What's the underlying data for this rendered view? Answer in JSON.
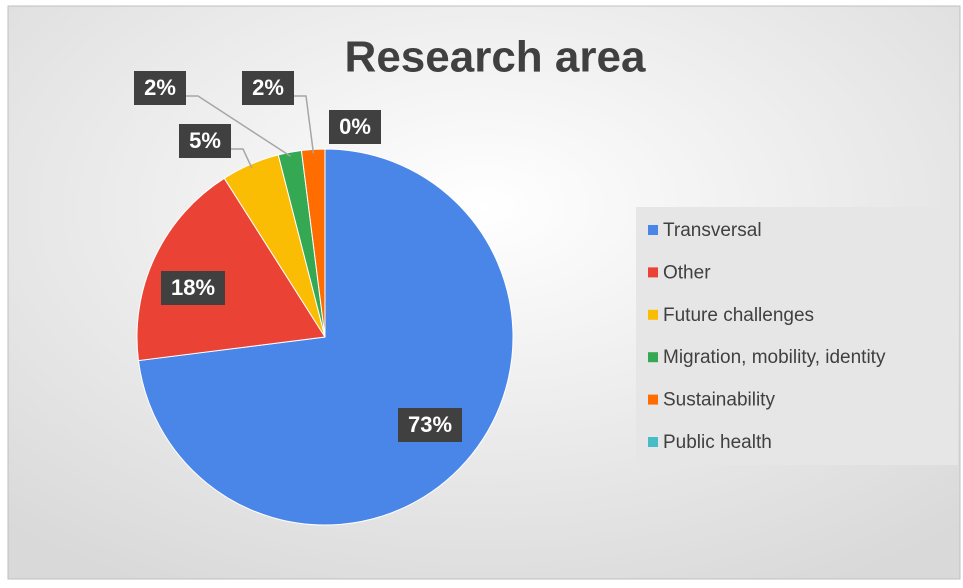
{
  "chart_data": {
    "type": "pie",
    "title": "Research area",
    "categories": [
      "Transversal",
      "Other",
      "Future challenges",
      "Migration, mobility, identity",
      "Sustainability",
      "Public health"
    ],
    "values": [
      73,
      18,
      5,
      2,
      2,
      0
    ],
    "value_labels": [
      "73%",
      "18%",
      "5%",
      "2%",
      "2%",
      "0%"
    ],
    "colors": [
      "#4a86e8",
      "#ea4335",
      "#fbbc04",
      "#34a853",
      "#ff6d01",
      "#46bdc6"
    ],
    "legend": "right"
  }
}
